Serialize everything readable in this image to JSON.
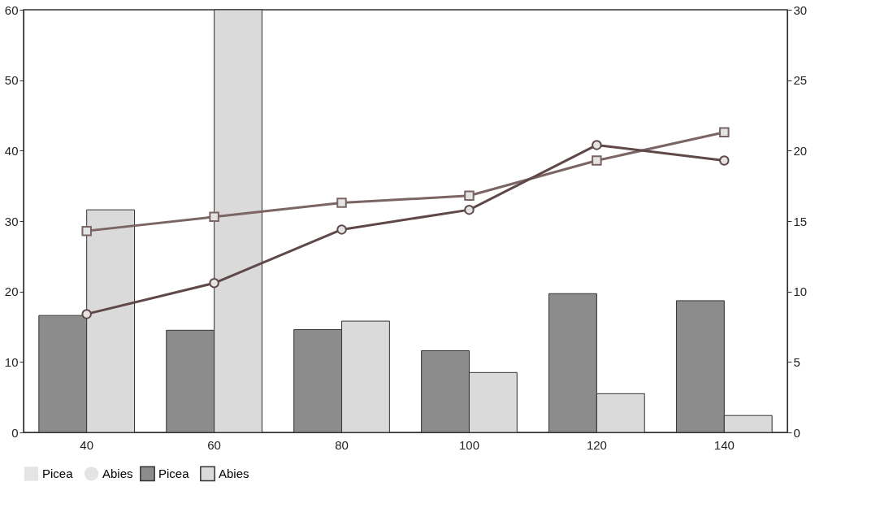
{
  "chart_data": {
    "type": "bar",
    "categories": [
      "40",
      "60",
      "80",
      "100",
      "120",
      "140"
    ],
    "ylim": [
      0,
      60
    ],
    "yticks": [
      0,
      10,
      20,
      30,
      40,
      50,
      60
    ],
    "y2lim": [
      0,
      30
    ],
    "y2ticks": [
      0,
      5,
      10,
      15,
      20,
      25,
      30
    ],
    "grid": false,
    "legend": "bottom",
    "series": [
      {
        "name": "Picea",
        "color": "#8c8c8c",
        "values": [
          16.6,
          14.5,
          14.6,
          11.6,
          19.7,
          18.7
        ]
      },
      {
        "name": "Abies",
        "color": "#dadada",
        "values": [
          31.6,
          60,
          15.8,
          8.5,
          5.5,
          2.4
        ]
      },
      {
        "name": "Picea",
        "type": "line",
        "axis": "y2",
        "marker": "square",
        "color": "#7a6464",
        "values": [
          14.3,
          15.3,
          16.3,
          16.8,
          19.3,
          21.3
        ]
      },
      {
        "name": "Abies",
        "type": "line",
        "axis": "y2",
        "marker": "circle",
        "color": "#5e4848",
        "values": [
          8.4,
          10.6,
          14.4,
          15.8,
          20.4,
          19.3
        ]
      }
    ]
  }
}
